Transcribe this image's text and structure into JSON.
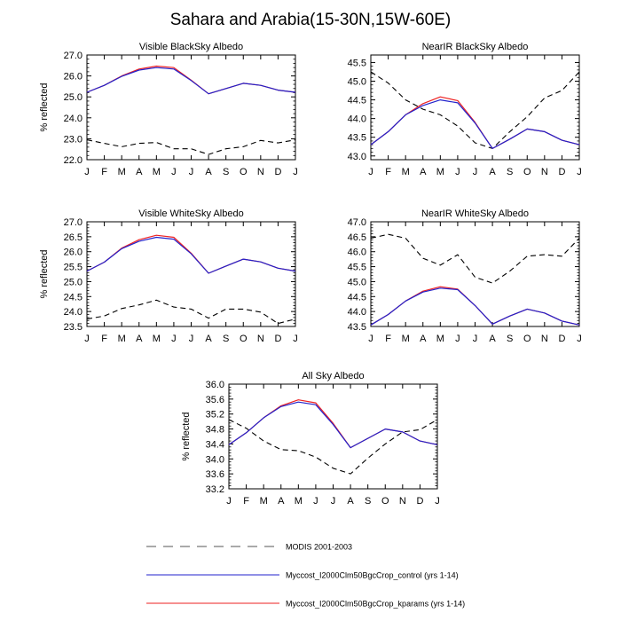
{
  "title": "Sahara and Arabia(15-30N,15W-60E)",
  "colors": {
    "modis": "#000000",
    "control": "#2222cc",
    "kparams": "#ee2222"
  },
  "legend": [
    {
      "key": "modis",
      "label": "MODIS 2001-2003",
      "style": "dashed"
    },
    {
      "key": "control",
      "label": "Myccost_I2000Clm50BgcCrop_control (yrs 1-14)",
      "style": "solid"
    },
    {
      "key": "kparams",
      "label": "Myccost_I2000Clm50BgcCrop_kparams (yrs 1-14)",
      "style": "solid"
    }
  ],
  "chart_data": [
    {
      "type": "line",
      "title": "Visible BlackSky Albedo",
      "ylabel": "% reflected",
      "categories": [
        "J",
        "F",
        "M",
        "A",
        "M",
        "J",
        "J",
        "A",
        "S",
        "O",
        "N",
        "D",
        "J"
      ],
      "ylim": [
        22.0,
        27.0
      ],
      "yticks": [
        "22.0",
        "23.0",
        "24.0",
        "25.0",
        "26.0",
        "27.0"
      ],
      "series": [
        {
          "key": "modis",
          "values": [
            22.95,
            22.78,
            22.62,
            22.78,
            22.82,
            22.52,
            22.52,
            22.25,
            22.52,
            22.62,
            22.92,
            22.8,
            22.95
          ]
        },
        {
          "key": "kparams",
          "values": [
            25.22,
            25.55,
            26.0,
            26.33,
            26.47,
            26.4,
            25.8,
            25.15,
            25.4,
            25.65,
            25.55,
            25.32,
            25.22
          ]
        },
        {
          "key": "control",
          "values": [
            25.22,
            25.55,
            25.98,
            26.28,
            26.4,
            26.33,
            25.78,
            25.15,
            25.4,
            25.65,
            25.55,
            25.32,
            25.22
          ]
        }
      ]
    },
    {
      "type": "line",
      "title": "NearIR BlackSky Albedo",
      "ylabel": "",
      "categories": [
        "J",
        "F",
        "M",
        "A",
        "M",
        "J",
        "J",
        "A",
        "S",
        "O",
        "N",
        "D",
        "J"
      ],
      "ylim": [
        42.9,
        45.7
      ],
      "yticks": [
        "43.0",
        "43.5",
        "44.0",
        "44.5",
        "45.0",
        "45.5"
      ],
      "series": [
        {
          "key": "modis",
          "values": [
            45.25,
            44.95,
            44.5,
            44.25,
            44.1,
            43.8,
            43.35,
            43.2,
            43.65,
            44.05,
            44.55,
            44.75,
            45.25
          ]
        },
        {
          "key": "kparams",
          "values": [
            43.3,
            43.65,
            44.1,
            44.4,
            44.58,
            44.48,
            43.9,
            43.2,
            43.45,
            43.72,
            43.65,
            43.42,
            43.3
          ]
        },
        {
          "key": "control",
          "values": [
            43.3,
            43.65,
            44.1,
            44.35,
            44.5,
            44.42,
            43.88,
            43.2,
            43.45,
            43.72,
            43.65,
            43.42,
            43.3
          ]
        }
      ]
    },
    {
      "type": "line",
      "title": "Visible WhiteSky Albedo",
      "ylabel": "% reflected",
      "categories": [
        "J",
        "F",
        "M",
        "A",
        "M",
        "J",
        "J",
        "A",
        "S",
        "O",
        "N",
        "D",
        "J"
      ],
      "ylim": [
        23.5,
        27.0
      ],
      "yticks": [
        "23.5",
        "24.0",
        "24.5",
        "25.0",
        "25.5",
        "26.0",
        "26.5",
        "27.0"
      ],
      "series": [
        {
          "key": "modis",
          "values": [
            23.75,
            23.85,
            24.1,
            24.22,
            24.38,
            24.15,
            24.08,
            23.78,
            24.08,
            24.08,
            23.98,
            23.6,
            23.75
          ]
        },
        {
          "key": "kparams",
          "values": [
            25.35,
            25.65,
            26.12,
            26.4,
            26.55,
            26.48,
            25.95,
            25.28,
            25.52,
            25.75,
            25.66,
            25.45,
            25.35
          ]
        },
        {
          "key": "control",
          "values": [
            25.35,
            25.65,
            26.1,
            26.35,
            26.48,
            26.42,
            25.93,
            25.28,
            25.52,
            25.75,
            25.66,
            25.45,
            25.35
          ]
        }
      ]
    },
    {
      "type": "line",
      "title": "NearIR WhiteSky Albedo",
      "ylabel": "",
      "categories": [
        "J",
        "F",
        "M",
        "A",
        "M",
        "J",
        "J",
        "A",
        "S",
        "O",
        "N",
        "D",
        "J"
      ],
      "ylim": [
        43.5,
        47.0
      ],
      "yticks": [
        "43.5",
        "44.0",
        "44.5",
        "45.0",
        "45.5",
        "46.0",
        "46.5",
        "47.0"
      ],
      "series": [
        {
          "key": "modis",
          "values": [
            46.45,
            46.58,
            46.45,
            45.78,
            45.55,
            45.9,
            45.15,
            44.95,
            45.35,
            45.85,
            45.9,
            45.85,
            46.45
          ]
        },
        {
          "key": "kparams",
          "values": [
            43.55,
            43.9,
            44.35,
            44.68,
            44.83,
            44.75,
            44.2,
            43.58,
            43.85,
            44.08,
            43.95,
            43.68,
            43.55
          ]
        },
        {
          "key": "control",
          "values": [
            43.55,
            43.9,
            44.35,
            44.65,
            44.78,
            44.73,
            44.2,
            43.58,
            43.85,
            44.08,
            43.95,
            43.68,
            43.55
          ]
        }
      ]
    },
    {
      "type": "line",
      "title": "All Sky Albedo",
      "ylabel": "% reflected",
      "categories": [
        "J",
        "F",
        "M",
        "A",
        "M",
        "J",
        "J",
        "A",
        "S",
        "O",
        "N",
        "D",
        "J"
      ],
      "ylim": [
        33.2,
        36.0
      ],
      "yticks": [
        "33.2",
        "33.6",
        "34.0",
        "34.4",
        "34.8",
        "35.2",
        "35.6",
        "36.0"
      ],
      "series": [
        {
          "key": "modis",
          "values": [
            35.05,
            34.82,
            34.48,
            34.25,
            34.22,
            34.05,
            33.75,
            33.6,
            34.02,
            34.4,
            34.72,
            34.78,
            35.05
          ]
        },
        {
          "key": "kparams",
          "values": [
            34.38,
            34.7,
            35.1,
            35.42,
            35.58,
            35.5,
            34.95,
            34.3,
            34.55,
            34.8,
            34.72,
            34.48,
            34.38
          ]
        },
        {
          "key": "control",
          "values": [
            34.38,
            34.7,
            35.1,
            35.4,
            35.52,
            35.45,
            34.92,
            34.3,
            34.55,
            34.8,
            34.72,
            34.48,
            34.38
          ]
        }
      ]
    }
  ]
}
